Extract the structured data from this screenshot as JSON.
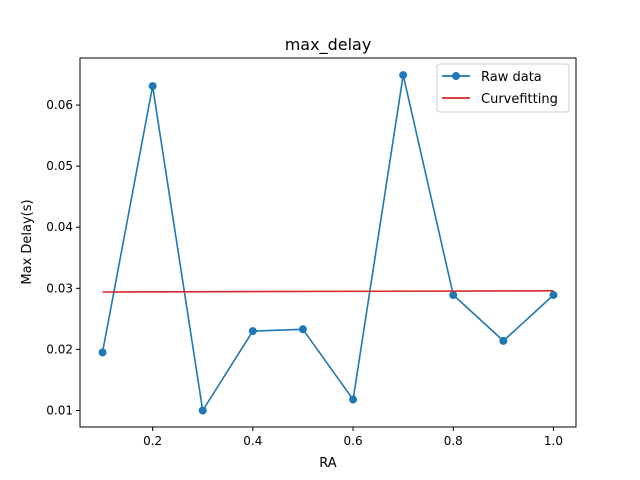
{
  "chart_data": {
    "type": "line",
    "title": "max_delay",
    "xlabel": "RA",
    "ylabel": "Max Delay(s)",
    "xlim": [
      0.055,
      1.045
    ],
    "ylim": [
      0.0073,
      0.0677
    ],
    "x_ticks": [
      0.2,
      0.4,
      0.6,
      0.8,
      1.0
    ],
    "x_tick_labels": [
      "0.2",
      "0.4",
      "0.6",
      "0.8",
      "1.0"
    ],
    "y_ticks": [
      0.01,
      0.02,
      0.03,
      0.04,
      0.05,
      0.06
    ],
    "y_tick_labels": [
      "0.01",
      "0.02",
      "0.03",
      "0.04",
      "0.05",
      "0.06"
    ],
    "grid": false,
    "legend_position": "top-right",
    "series": [
      {
        "name": "Raw data",
        "style": "line-with-markers",
        "color": "#1f77b4",
        "x": [
          0.1,
          0.2,
          0.3,
          0.4,
          0.5,
          0.6,
          0.7,
          0.8,
          0.9,
          1.0
        ],
        "y": [
          0.0195,
          0.0631,
          0.01,
          0.023,
          0.0233,
          0.0118,
          0.0649,
          0.0289,
          0.0214,
          0.0289
        ]
      },
      {
        "name": "Curvefitting",
        "style": "line",
        "color": "#d62728",
        "x": [
          0.1,
          1.0
        ],
        "y": [
          0.0294,
          0.0296
        ]
      }
    ]
  }
}
